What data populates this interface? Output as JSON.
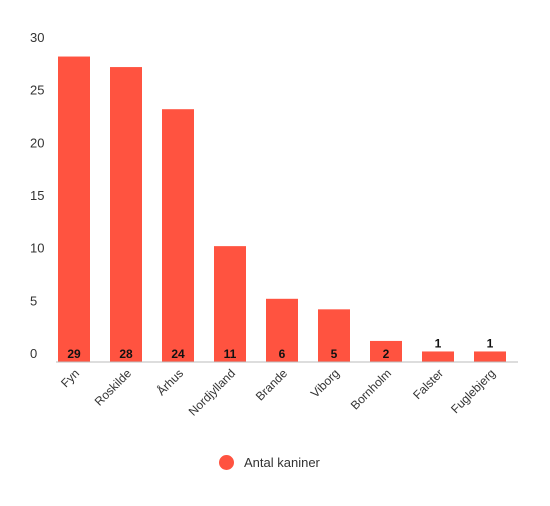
{
  "chart_data": {
    "type": "bar",
    "categories": [
      "Fyn",
      "Roskilde",
      "Århus",
      "Nordjylland",
      "Brande",
      "Viborg",
      "Bornholm",
      "Falster",
      "Fuglebjerg"
    ],
    "series": [
      {
        "name": "Antal kaniner",
        "values": [
          29,
          28,
          24,
          11,
          6,
          5,
          2,
          1,
          1
        ]
      }
    ],
    "data_labels": [
      "29",
      "28",
      "24",
      "11",
      "6",
      "5",
      "2",
      "1",
      "1"
    ],
    "ylim": [
      0,
      30
    ],
    "yticks": [
      "0",
      "5",
      "10",
      "15",
      "20",
      "25",
      "30"
    ],
    "grid": false,
    "legend_position": "bottom",
    "xlabel": "",
    "ylabel": "",
    "bar_color": "#ff5340"
  }
}
